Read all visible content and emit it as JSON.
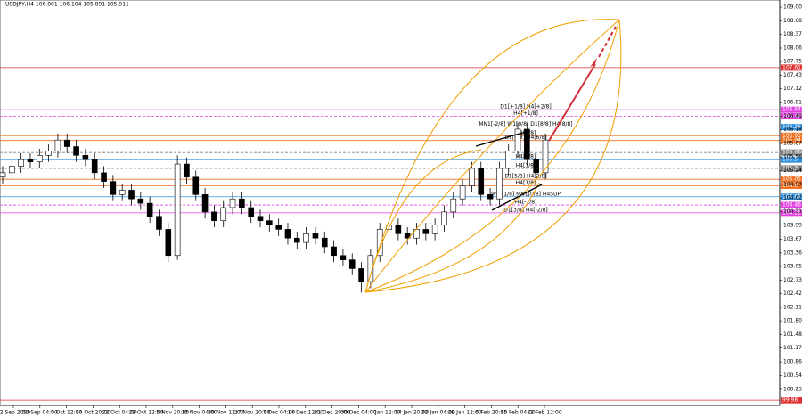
{
  "chart_data": {
    "type": "candlestick",
    "title": "USDJPY,H4  106.001 106.104 105.891 105.911",
    "ylim": [
      99.86,
      109.164
    ],
    "yticks": [
      {
        "value": 109,
        "label": "109.000"
      },
      108.685,
      108.375,
      {
        "value": 108.06,
        "label": "108.060"
      },
      {
        "value": 107.75,
        "label": "107.750"
      },
      107.435,
      107.125,
      {
        "value": 106.81,
        "label": "106.810"
      },
      106.495,
      106.185,
      {
        "value": 105.87,
        "label": "105.870"
      },
      {
        "value": 105.56,
        "label": "105.560"
      },
      105.245,
      104.935,
      {
        "value": 104.62,
        "label": "104.620"
      },
      {
        "value": 104.31,
        "label": "104.310"
      },
      103.995,
      103.675,
      {
        "value": 103.36,
        "label": "103.360"
      },
      {
        "value": 103.05,
        "label": "103.050"
      },
      102.735,
      102.425,
      {
        "value": 102.11,
        "label": "102.110"
      },
      {
        "value": 101.8,
        "label": "101.800"
      },
      101.485,
      101.175,
      {
        "value": 100.86,
        "label": "100.860"
      },
      100.545,
      {
        "value": 100.23,
        "label": "100.230"
      }
    ],
    "x_labels": [
      "22 Sep 2020",
      "30 Sep 04:00",
      "7 Oct 12:00",
      "14 Oct 20:00",
      "22 Oct 04:00",
      "29 Oct 12:00",
      "5 Nov 20:00",
      "13 Nov 04:00",
      "20 Nov 12:00",
      "27 Nov 20:00",
      "7 Dec 04:00",
      "14 Dec 12:00",
      "21 Dec 20:00",
      "30 Dec 04:00",
      "7 Jan 12:00",
      "14 Jan 20:00",
      "22 Jan 04:00",
      "29 Jan 12:00",
      "5 Feb 20:00",
      "15 Feb 04:00",
      "22 Feb 12:00"
    ],
    "ohlc": [
      [
        105.1,
        105.35,
        104.95,
        105.2
      ],
      [
        105.2,
        105.5,
        105.05,
        105.35
      ],
      [
        105.35,
        105.65,
        105.2,
        105.5
      ],
      [
        105.5,
        105.65,
        105.3,
        105.45
      ],
      [
        105.45,
        105.75,
        105.3,
        105.6
      ],
      [
        105.6,
        105.85,
        105.45,
        105.7
      ],
      [
        105.7,
        106.1,
        105.55,
        105.95
      ],
      [
        105.95,
        106.1,
        105.65,
        105.8
      ],
      [
        105.8,
        105.95,
        105.45,
        105.6
      ],
      [
        105.6,
        105.75,
        105.35,
        105.5
      ],
      [
        105.5,
        105.65,
        105.05,
        105.2
      ],
      [
        105.2,
        105.35,
        104.85,
        105
      ],
      [
        105,
        105.15,
        104.55,
        104.7
      ],
      [
        104.7,
        104.95,
        104.55,
        104.8
      ],
      [
        104.8,
        104.95,
        104.45,
        104.6
      ],
      [
        104.6,
        104.75,
        104.35,
        104.5
      ],
      [
        104.5,
        104.65,
        104.05,
        104.2
      ],
      [
        104.2,
        104.35,
        103.75,
        103.9
      ],
      [
        103.9,
        104.05,
        103.15,
        103.3
      ],
      [
        103.3,
        105.6,
        103.2,
        105.4
      ],
      [
        105.4,
        105.55,
        104.95,
        105.1
      ],
      [
        105.1,
        105.25,
        104.55,
        104.7
      ],
      [
        104.7,
        104.85,
        104.15,
        104.3
      ],
      [
        104.3,
        104.45,
        103.95,
        104.1
      ],
      [
        104.1,
        104.55,
        103.95,
        104.4
      ],
      [
        104.4,
        104.75,
        104.25,
        104.6
      ],
      [
        104.6,
        104.75,
        104.25,
        104.4
      ],
      [
        104.4,
        104.55,
        104.05,
        104.2
      ],
      [
        104.2,
        104.35,
        103.95,
        104.1
      ],
      [
        104.1,
        104.25,
        103.85,
        104
      ],
      [
        104,
        104.15,
        103.75,
        103.9
      ],
      [
        103.9,
        104.05,
        103.55,
        103.7
      ],
      [
        103.7,
        103.85,
        103.45,
        103.6
      ],
      [
        103.6,
        103.95,
        103.45,
        103.8
      ],
      [
        103.8,
        103.95,
        103.55,
        103.7
      ],
      [
        103.7,
        103.85,
        103.35,
        103.5
      ],
      [
        103.5,
        103.65,
        103.15,
        103.3
      ],
      [
        103.3,
        103.45,
        103.05,
        103.2
      ],
      [
        103.2,
        103.35,
        102.85,
        103
      ],
      [
        103,
        103.15,
        102.45,
        102.7
      ],
      [
        102.7,
        103.45,
        102.55,
        103.3
      ],
      [
        103.3,
        104.05,
        103.15,
        103.9
      ],
      [
        103.9,
        104.15,
        103.75,
        104
      ],
      [
        104,
        104.15,
        103.65,
        103.8
      ],
      [
        103.8,
        103.95,
        103.55,
        103.7
      ],
      [
        103.7,
        104.05,
        103.55,
        103.9
      ],
      [
        103.9,
        104.05,
        103.65,
        103.8
      ],
      [
        103.8,
        104.15,
        103.65,
        104
      ],
      [
        104,
        104.45,
        103.85,
        104.3
      ],
      [
        104.3,
        104.75,
        104.15,
        104.6
      ],
      [
        104.6,
        105.05,
        104.45,
        104.9
      ],
      [
        104.9,
        105.45,
        104.75,
        105.3
      ],
      [
        105.3,
        105.45,
        104.55,
        104.7
      ],
      [
        104.7,
        104.85,
        104.45,
        104.6
      ],
      [
        104.6,
        105.45,
        104.45,
        105.3
      ],
      [
        105.3,
        105.85,
        105.15,
        105.7
      ],
      [
        105.7,
        106.35,
        105.55,
        106.2
      ],
      [
        106.2,
        106.35,
        105.35,
        105.5
      ],
      [
        105.5,
        105.65,
        105.05,
        105.2
      ],
      [
        105.2,
        106.1,
        105.05,
        105.95
      ]
    ],
    "levels": [
      {
        "value": 107.612,
        "color": "#e03030"
      },
      {
        "value": 106.645,
        "color": "#e040e0",
        "label": "D1[+1/8] H4[+2/8]"
      },
      {
        "value": 106.495,
        "color": "#e040e0",
        "label": "H4[+1/8]",
        "dashed": true
      },
      {
        "value": 106.25,
        "color": "#3090e0",
        "label": "MN1[-2/8] W1[0/8] D1[8/8] H4[8/8]"
      },
      {
        "value": 106.05,
        "color": "#f07020",
        "label": "D1[7/8]"
      },
      {
        "value": 105.94,
        "color": "#f07020",
        "label": "D1[6/8] H4[6/8]"
      },
      {
        "value": 105.664,
        "color": "#808080",
        "dashed": true
      },
      {
        "value": 105.5,
        "color": "#3090e0",
        "label": "H4[4/8]"
      },
      {
        "value": 105.3,
        "color": "#808080",
        "label": "H4[3/8]",
        "dashed": true
      },
      {
        "value": 105.05,
        "color": "#f07020",
        "label": "D1[5/8] H4[2/8]"
      },
      {
        "value": 104.9,
        "color": "#f07020",
        "label": "H4[1/8]"
      },
      {
        "value": 104.65,
        "color": "#3090e0",
        "label": "W1[-1/8] MN1[0/8] H4SUP"
      },
      {
        "value": 104.46,
        "color": "#e040e0",
        "label": "H4[-1/8]",
        "dashed": true
      },
      {
        "value": 104.28,
        "color": "#e040e0",
        "label": "D1[3/8] H4[-2/8]"
      },
      {
        "value": 99.98,
        "color": "#e03030"
      }
    ]
  }
}
